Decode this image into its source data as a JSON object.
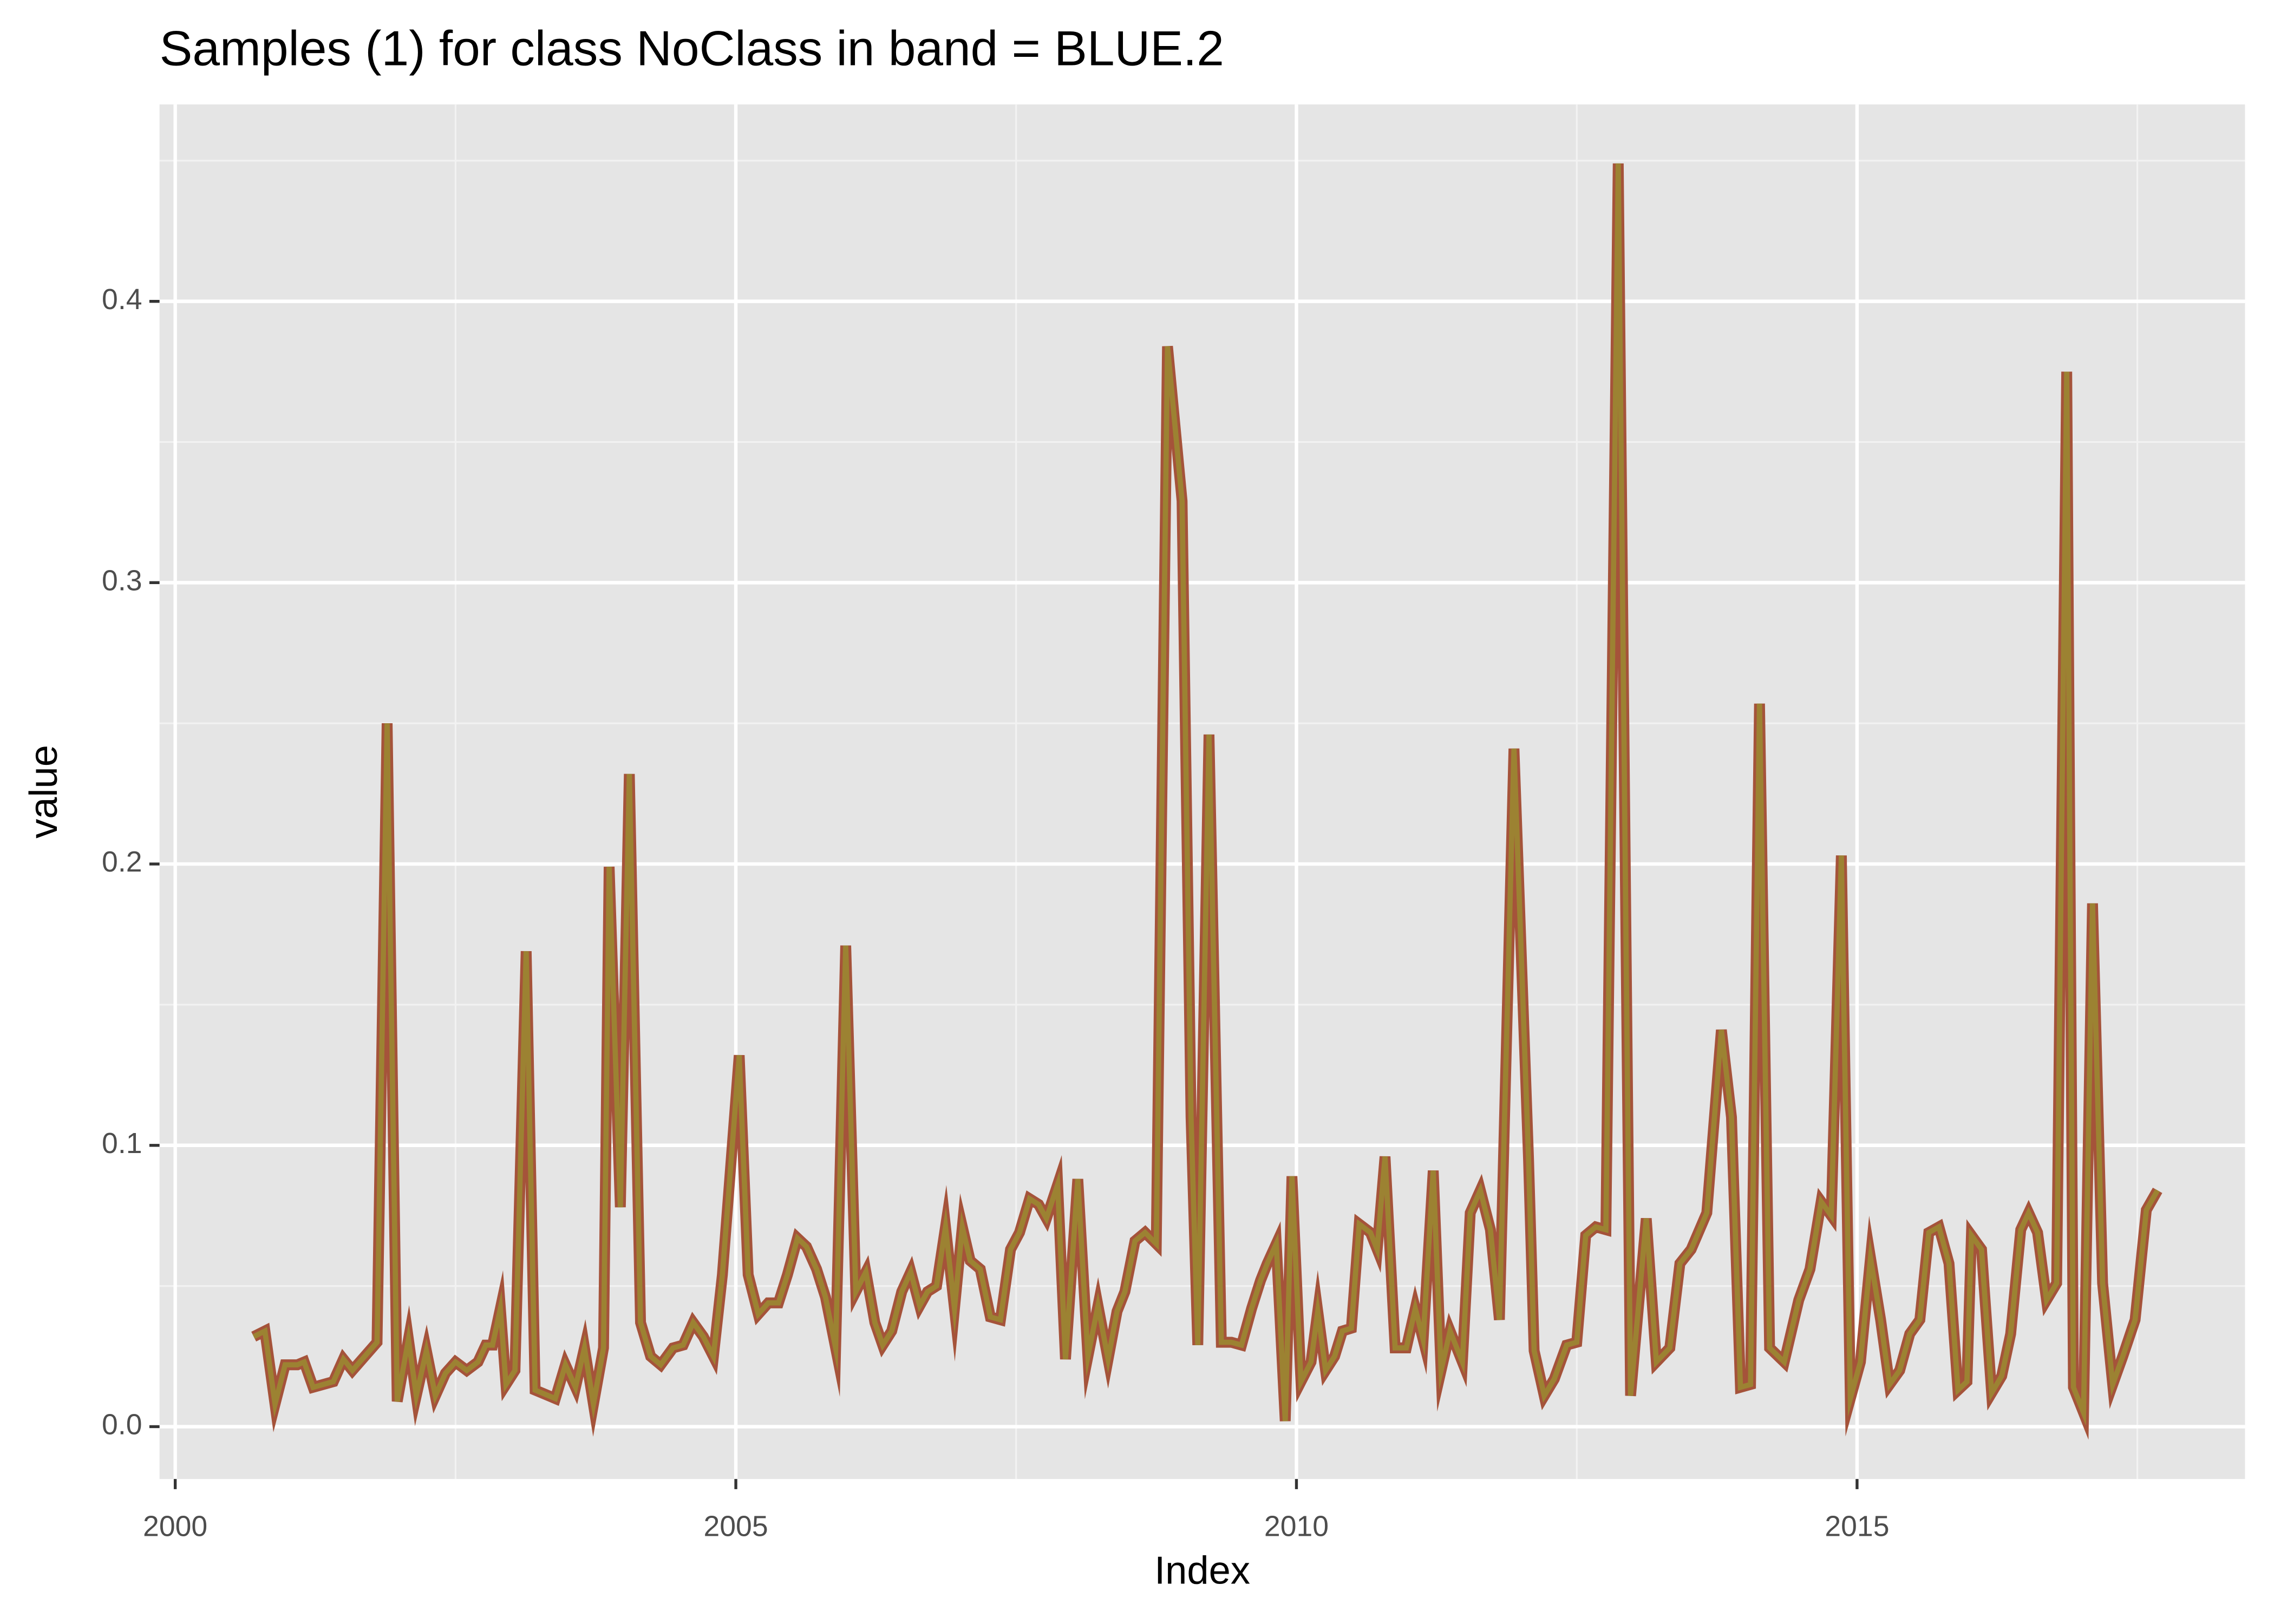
{
  "chart_data": {
    "type": "line",
    "title": "Samples (1) for class NoClass in band = BLUE.2",
    "x_label": "Index",
    "y_label": "value",
    "color": "#9c8232",
    "edge_color": "#a5533a",
    "xlim": [
      1999.86,
      2018.46
    ],
    "ylim": [
      -0.0186,
      0.47
    ],
    "xticks": [
      2000,
      2005,
      2010,
      2015
    ],
    "xminor": [
      2002.5,
      2007.5,
      2012.5,
      2017.5
    ],
    "yticks": [
      {
        "value": 0,
        "label": "0.0"
      },
      0.1,
      0.2,
      0.3,
      0.4
    ],
    "yminor": [
      0.05,
      0.15,
      0.25,
      0.35,
      0.45
    ],
    "grid": true,
    "x": [
      2000.7,
      2000.8,
      2000.89,
      2000.98,
      2001.09,
      2001.15,
      2001.23,
      2001.41,
      2001.5,
      2001.58,
      2001.69,
      2001.8,
      2001.89,
      2001.98,
      2002.08,
      2002.15,
      2002.24,
      2002.32,
      2002.41,
      2002.5,
      2002.6,
      2002.7,
      2002.77,
      2002.83,
      2002.9,
      2002.95,
      2003.03,
      2003.13,
      2003.21,
      2003.39,
      2003.48,
      2003.57,
      2003.65,
      2003.73,
      2003.82,
      2003.87,
      2003.97,
      2004.05,
      2004.15,
      2004.24,
      2004.33,
      2004.44,
      2004.53,
      2004.62,
      2004.71,
      2004.8,
      2004.88,
      2005.03,
      2005.11,
      2005.2,
      2005.29,
      2005.38,
      2005.46,
      2005.55,
      2005.63,
      2005.72,
      2005.8,
      2005.89,
      2005.98,
      2006.07,
      2006.16,
      2006.24,
      2006.31,
      2006.39,
      2006.48,
      2006.56,
      2006.64,
      2006.71,
      2006.79,
      2006.87,
      2006.95,
      2007.02,
      2007.09,
      2007.18,
      2007.27,
      2007.36,
      2007.45,
      2007.53,
      2007.62,
      2007.7,
      2007.77,
      2007.87,
      2007.94,
      2008.05,
      2008.14,
      2008.23,
      2008.32,
      2008.4,
      2008.47,
      2008.56,
      2008.65,
      2008.75,
      2008.85,
      2008.98,
      2009.06,
      2009.12,
      2009.22,
      2009.33,
      2009.42,
      2009.51,
      2009.6,
      2009.68,
      2009.74,
      2009.82,
      2009.9,
      2009.96,
      2010.04,
      2010.13,
      2010.19,
      2010.26,
      2010.34,
      2010.41,
      2010.49,
      2010.56,
      2010.66,
      2010.72,
      2010.79,
      2010.88,
      2010.98,
      2011.06,
      2011.13,
      2011.22,
      2011.29,
      2011.37,
      2011.48,
      2011.55,
      2011.64,
      2011.73,
      2011.81,
      2011.94,
      2012.07,
      2012.12,
      2012.21,
      2012.3,
      2012.41,
      2012.5,
      2012.58,
      2012.67,
      2012.76,
      2012.87,
      2012.98,
      2013.12,
      2013.21,
      2013.33,
      2013.42,
      2013.52,
      2013.66,
      2013.79,
      2013.88,
      2013.96,
      2014.05,
      2014.13,
      2014.22,
      2014.35,
      2014.48,
      2014.58,
      2014.68,
      2014.77,
      2014.86,
      2014.94,
      2015.03,
      2015.12,
      2015.21,
      2015.29,
      2015.38,
      2015.47,
      2015.56,
      2015.64,
      2015.73,
      2015.82,
      2015.9,
      2015.98,
      2016.02,
      2016.11,
      2016.2,
      2016.29,
      2016.37,
      2016.46,
      2016.53,
      2016.61,
      2016.69,
      2016.78,
      2016.87,
      2016.93,
      2017.02,
      2017.1,
      2017.19,
      2017.28,
      2017.37,
      2017.48,
      2017.58,
      2017.68
    ],
    "values": [
      0.032,
      0.034,
      0.008,
      0.022,
      0.022,
      0.023,
      0.014,
      0.016,
      0.024,
      0.02,
      0.025,
      0.03,
      0.25,
      0.009,
      0.031,
      0.011,
      0.027,
      0.011,
      0.019,
      0.023,
      0.02,
      0.023,
      0.029,
      0.029,
      0.042,
      0.015,
      0.02,
      0.169,
      0.013,
      0.01,
      0.022,
      0.014,
      0.028,
      0.008,
      0.028,
      0.199,
      0.078,
      0.232,
      0.037,
      0.025,
      0.022,
      0.028,
      0.029,
      0.037,
      0.032,
      0.025,
      0.054,
      0.132,
      0.054,
      0.04,
      0.044,
      0.044,
      0.054,
      0.067,
      0.064,
      0.056,
      0.046,
      0.028,
      0.171,
      0.048,
      0.055,
      0.037,
      0.029,
      0.034,
      0.048,
      0.055,
      0.043,
      0.048,
      0.05,
      0.071,
      0.042,
      0.071,
      0.059,
      0.056,
      0.039,
      0.038,
      0.063,
      0.069,
      0.081,
      0.079,
      0.074,
      0.086,
      0.024,
      0.088,
      0.025,
      0.043,
      0.024,
      0.041,
      0.048,
      0.066,
      0.069,
      0.065,
      0.384,
      0.329,
      0.11,
      0.029,
      0.246,
      0.03,
      0.03,
      0.029,
      0.042,
      0.052,
      0.058,
      0.065,
      0.002,
      0.089,
      0.016,
      0.023,
      0.041,
      0.02,
      0.025,
      0.034,
      0.035,
      0.072,
      0.069,
      0.063,
      0.096,
      0.028,
      0.028,
      0.042,
      0.031,
      0.091,
      0.02,
      0.034,
      0.023,
      0.076,
      0.084,
      0.07,
      0.038,
      0.241,
      0.095,
      0.027,
      0.011,
      0.017,
      0.029,
      0.03,
      0.068,
      0.071,
      0.07,
      0.449,
      0.011,
      0.074,
      0.023,
      0.028,
      0.058,
      0.063,
      0.076,
      0.141,
      0.11,
      0.014,
      0.015,
      0.257,
      0.028,
      0.023,
      0.045,
      0.056,
      0.08,
      0.075,
      0.203,
      0.01,
      0.023,
      0.06,
      0.038,
      0.015,
      0.02,
      0.033,
      0.038,
      0.069,
      0.071,
      0.058,
      0.013,
      0.016,
      0.068,
      0.063,
      0.012,
      0.018,
      0.033,
      0.07,
      0.076,
      0.069,
      0.045,
      0.051,
      0.375,
      0.014,
      0.005,
      0.186,
      0.051,
      0.015,
      0.025,
      0.038,
      0.077,
      0.084
    ]
  }
}
